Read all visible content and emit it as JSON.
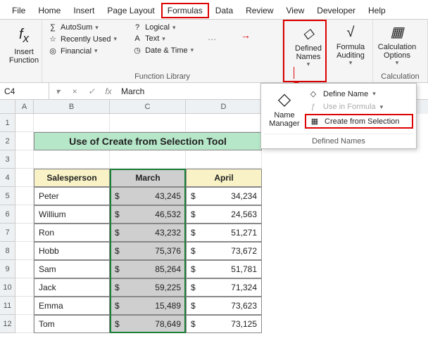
{
  "menu": {
    "file": "File",
    "home": "Home",
    "insert": "Insert",
    "pageLayout": "Page Layout",
    "formulas": "Formulas",
    "data": "Data",
    "review": "Review",
    "view": "View",
    "developer": "Developer",
    "help": "Help"
  },
  "ribbon": {
    "insertFunction": "Insert Function",
    "autosum": "AutoSum",
    "recent": "Recently Used",
    "financial": "Financial",
    "logical": "Logical",
    "text": "Text",
    "dateTime": "Date & Time",
    "libLabel": "Function Library",
    "definedNames": "Defined Names",
    "formulaAuditing": "Formula Auditing",
    "calcOptions": "Calculation Options",
    "calcLabel": "Calculation"
  },
  "nameBox": "C4",
  "fxLabel": "fx",
  "formulaValue": "March",
  "colHeaders": {
    "A": "A",
    "B": "B",
    "C": "C",
    "D": "D"
  },
  "rowHeaders": [
    "1",
    "2",
    "3",
    "4",
    "5",
    "6",
    "7",
    "8",
    "9",
    "10",
    "11",
    "12"
  ],
  "banner": "Use of Create from Selection Tool",
  "table": {
    "headers": {
      "sales": "Salesperson",
      "march": "March",
      "april": "April"
    },
    "rows": [
      {
        "name": "Peter",
        "march": "43,245",
        "april": "34,234"
      },
      {
        "name": "Willium",
        "march": "46,532",
        "april": "24,563"
      },
      {
        "name": "Ron",
        "march": "43,232",
        "april": "51,271"
      },
      {
        "name": "Hobb",
        "march": "75,376",
        "april": "73,672"
      },
      {
        "name": "Sam",
        "march": "85,264",
        "april": "51,781"
      },
      {
        "name": "Jack",
        "march": "59,225",
        "april": "71,324"
      },
      {
        "name": "Emma",
        "march": "15,489",
        "april": "73,623"
      },
      {
        "name": "Tom",
        "march": "78,649",
        "april": "73,125"
      }
    ],
    "currency": "$"
  },
  "popup": {
    "nameManager": "Name Manager",
    "defineName": "Define Name",
    "useInFormula": "Use in Formula",
    "createFromSelection": "Create from Selection",
    "footer": "Defined Names"
  },
  "colors": {
    "highlight": "#d00",
    "banner": "#b6e7c9",
    "tableHead": "#f8f2c6",
    "selection": "#cfcfcf",
    "selBorder": "#1a7f37"
  }
}
